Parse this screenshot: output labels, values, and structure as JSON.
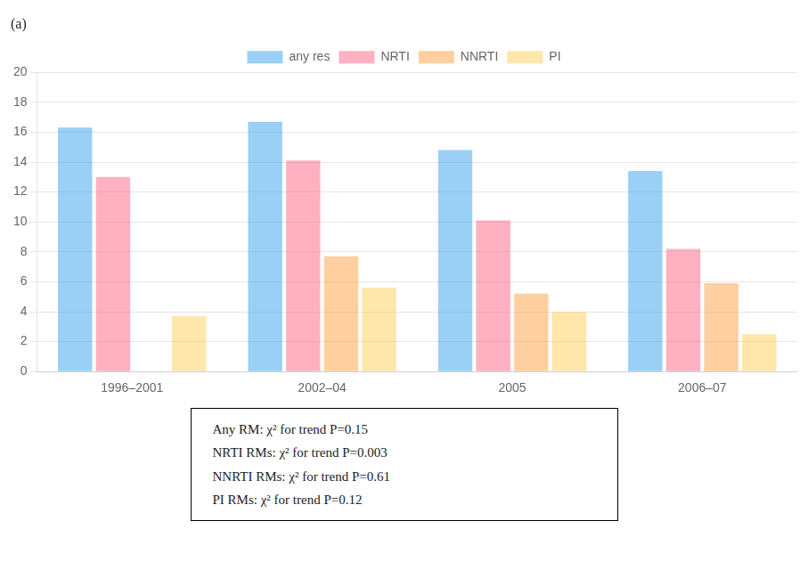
{
  "chart_data": {
    "type": "bar",
    "title": "(a)",
    "categories": [
      "1996–2001",
      "2002–04",
      "2005",
      "2006–07"
    ],
    "series": [
      {
        "name": "any res",
        "values": [
          16.3,
          16.7,
          14.8,
          13.4
        ]
      },
      {
        "name": "NRTI",
        "values": [
          13.0,
          14.1,
          10.1,
          8.2
        ]
      },
      {
        "name": "NNRTI",
        "values": [
          0.0,
          7.7,
          5.2,
          5.9
        ]
      },
      {
        "name": "PI",
        "values": [
          3.7,
          5.6,
          4.0,
          2.5
        ]
      }
    ],
    "ylim": [
      0,
      20
    ],
    "yticks": [
      0,
      2,
      4,
      6,
      8,
      10,
      12,
      14,
      16,
      18,
      20
    ],
    "grid": true,
    "legend": "top",
    "annotations": [
      "Any RM: χ² for trend P=0.15",
      "NRTI RMs: χ² for trend P=0.003",
      "NNRTI RMs: χ² for trend P=0.61",
      "PI RMs: χ² for trend P=0.12"
    ]
  }
}
